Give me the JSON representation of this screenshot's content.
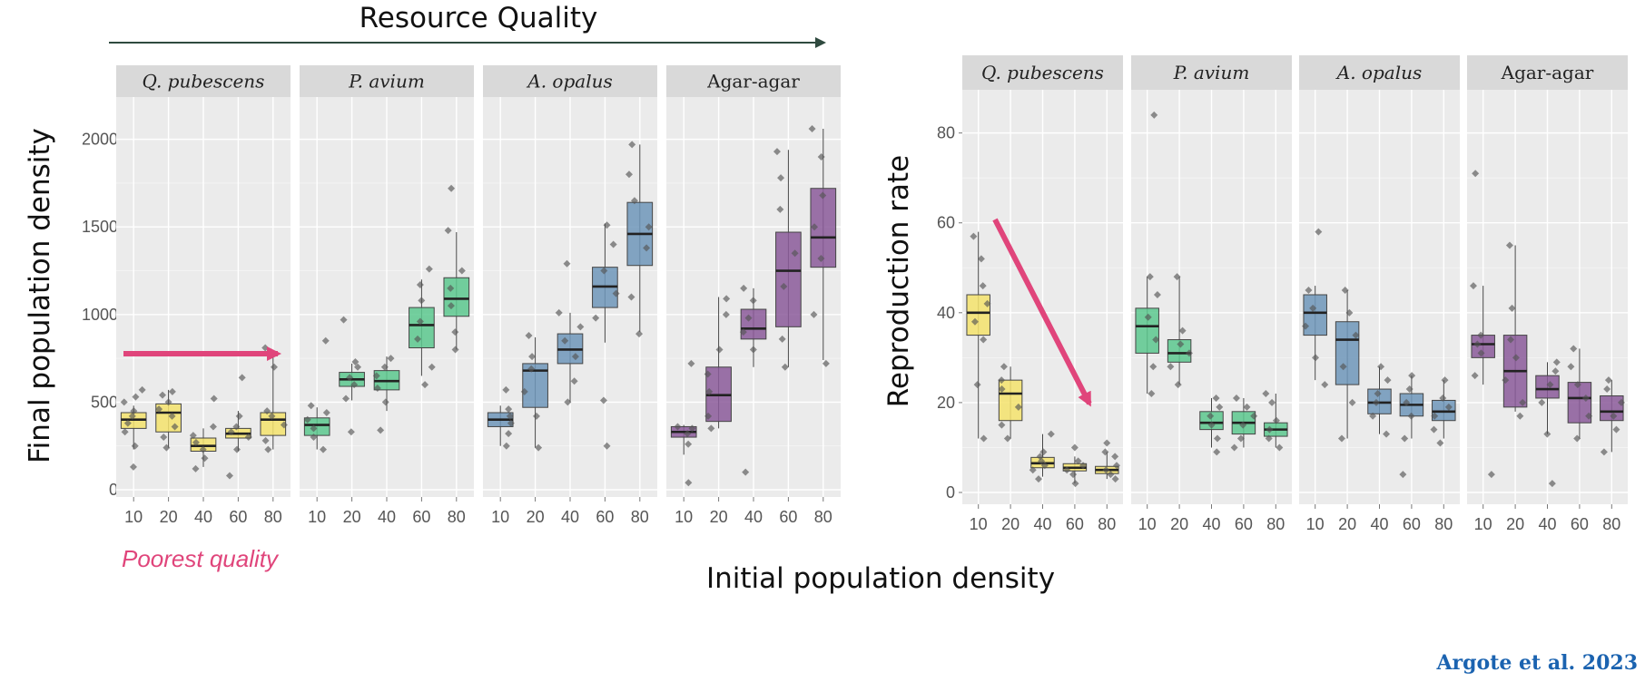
{
  "header": {
    "title": "Resource Quality"
  },
  "shared_xlabel": "Initial population density",
  "annotation": {
    "poorest": "Poorest quality"
  },
  "citation": "Argote et al. 2023",
  "colors": {
    "yellow": "#f4e36c",
    "green": "#5cc88e",
    "blue": "#6f96ba",
    "purple": "#8b5a9a",
    "pink": "#e0457b",
    "arrow_dark": "#2f4a3f"
  },
  "chart_data": [
    {
      "type": "box",
      "ylabel": "Final population density",
      "ylim": [
        0,
        2200
      ],
      "yticks": [
        0,
        500,
        1000,
        1500,
        2000
      ],
      "categories": [
        "10",
        "20",
        "40",
        "60",
        "80"
      ],
      "grid": true,
      "panels": [
        {
          "name": "Q. pubescens",
          "italic": true,
          "color": "yellow",
          "boxes": [
            {
              "q1": 350,
              "med": 400,
              "q3": 440,
              "lo": 230,
              "hi": 480,
              "pts": [
                130,
                250,
                330,
                380,
                420,
                450,
                500,
                570,
                530
              ]
            },
            {
              "q1": 330,
              "med": 440,
              "q3": 490,
              "lo": 240,
              "hi": 570,
              "pts": [
                240,
                300,
                360,
                420,
                460,
                500,
                540,
                560
              ]
            },
            {
              "q1": 220,
              "med": 250,
              "q3": 295,
              "lo": 130,
              "hi": 350,
              "pts": [
                120,
                180,
                230,
                270,
                310,
                360,
                520
              ]
            },
            {
              "q1": 295,
              "med": 320,
              "q3": 350,
              "lo": 220,
              "hi": 450,
              "pts": [
                80,
                230,
                300,
                330,
                360,
                420,
                640
              ]
            },
            {
              "q1": 310,
              "med": 400,
              "q3": 440,
              "lo": 230,
              "hi": 760,
              "pts": [
                230,
                280,
                370,
                420,
                450,
                700,
                770,
                810
              ]
            }
          ]
        },
        {
          "name": "P. avium",
          "italic": true,
          "color": "green",
          "boxes": [
            {
              "q1": 310,
              "med": 370,
              "q3": 410,
              "lo": 230,
              "hi": 470,
              "pts": [
                230,
                300,
                350,
                400,
                440,
                480,
                850
              ]
            },
            {
              "q1": 590,
              "med": 630,
              "q3": 670,
              "lo": 510,
              "hi": 720,
              "pts": [
                330,
                520,
                600,
                640,
                700,
                730,
                970
              ]
            },
            {
              "q1": 570,
              "med": 620,
              "q3": 680,
              "lo": 450,
              "hi": 760,
              "pts": [
                340,
                500,
                580,
                650,
                700,
                750
              ]
            },
            {
              "q1": 810,
              "med": 940,
              "q3": 1040,
              "lo": 650,
              "hi": 1200,
              "pts": [
                600,
                700,
                860,
                960,
                1080,
                1170,
                1260
              ]
            },
            {
              "q1": 990,
              "med": 1090,
              "q3": 1210,
              "lo": 800,
              "hi": 1470,
              "pts": [
                800,
                900,
                1050,
                1150,
                1250,
                1480,
                1720
              ]
            }
          ]
        },
        {
          "name": "A. opalus",
          "italic": true,
          "color": "blue",
          "boxes": [
            {
              "q1": 360,
              "med": 400,
              "q3": 440,
              "lo": 250,
              "hi": 480,
              "pts": [
                250,
                320,
                380,
                420,
                460,
                570
              ]
            },
            {
              "q1": 470,
              "med": 680,
              "q3": 720,
              "lo": 240,
              "hi": 870,
              "pts": [
                240,
                420,
                560,
                690,
                760,
                880
              ]
            },
            {
              "q1": 720,
              "med": 800,
              "q3": 890,
              "lo": 500,
              "hi": 1010,
              "pts": [
                500,
                620,
                760,
                850,
                930,
                1010,
                1290
              ]
            },
            {
              "q1": 1040,
              "med": 1160,
              "q3": 1270,
              "lo": 840,
              "hi": 1520,
              "pts": [
                250,
                510,
                980,
                1120,
                1250,
                1400,
                1510
              ]
            },
            {
              "q1": 1280,
              "med": 1460,
              "q3": 1640,
              "lo": 900,
              "hi": 1970,
              "pts": [
                890,
                1100,
                1380,
                1500,
                1650,
                1800,
                1970
              ]
            }
          ]
        },
        {
          "name": "Agar-agar",
          "italic": false,
          "color": "purple",
          "boxes": [
            {
              "q1": 300,
              "med": 330,
              "q3": 360,
              "lo": 200,
              "hi": 370,
              "pts": [
                40,
                260,
                320,
                350,
                360,
                720
              ]
            },
            {
              "q1": 390,
              "med": 540,
              "q3": 700,
              "lo": 350,
              "hi": 1100,
              "pts": [
                350,
                420,
                560,
                660,
                800,
                1000,
                1090
              ]
            },
            {
              "q1": 860,
              "med": 920,
              "q3": 1030,
              "lo": 700,
              "hi": 1150,
              "pts": [
                100,
                800,
                900,
                980,
                1080,
                1150
              ]
            },
            {
              "q1": 930,
              "med": 1250,
              "q3": 1470,
              "lo": 700,
              "hi": 1940,
              "pts": [
                700,
                860,
                1160,
                1350,
                1600,
                1780,
                1930
              ]
            },
            {
              "q1": 1270,
              "med": 1440,
              "q3": 1720,
              "lo": 740,
              "hi": 2060,
              "pts": [
                720,
                1000,
                1320,
                1500,
                1680,
                1900,
                2060
              ]
            }
          ]
        }
      ]
    },
    {
      "type": "box",
      "ylabel": "Reproduction rate",
      "ylim": [
        0,
        88
      ],
      "yticks": [
        0,
        20,
        40,
        60,
        80
      ],
      "categories": [
        "10",
        "20",
        "40",
        "60",
        "80"
      ],
      "grid": true,
      "panels": [
        {
          "name": "Q. pubescens",
          "italic": true,
          "color": "yellow",
          "boxes": [
            {
              "q1": 35,
              "med": 40,
              "q3": 44,
              "lo": 12,
              "hi": 58,
              "pts": [
                12,
                24,
                34,
                38,
                42,
                46,
                52,
                57
              ]
            },
            {
              "q1": 16,
              "med": 22,
              "q3": 25,
              "lo": 12,
              "hi": 28,
              "pts": [
                12,
                15,
                19,
                23,
                25,
                28
              ]
            },
            {
              "q1": 5.5,
              "med": 6.5,
              "q3": 7.8,
              "lo": 3.5,
              "hi": 13,
              "pts": [
                3,
                5,
                6,
                7,
                8,
                9,
                13
              ]
            },
            {
              "q1": 4.8,
              "med": 5.5,
              "q3": 6.4,
              "lo": 2,
              "hi": 8,
              "pts": [
                2,
                4,
                5,
                6,
                7,
                10
              ]
            },
            {
              "q1": 4.2,
              "med": 5,
              "q3": 5.8,
              "lo": 3,
              "hi": 9,
              "pts": [
                3,
                4,
                5,
                6,
                8,
                9,
                11
              ]
            }
          ]
        },
        {
          "name": "P. avium",
          "italic": true,
          "color": "green",
          "boxes": [
            {
              "q1": 31,
              "med": 37,
              "q3": 41,
              "lo": 22,
              "hi": 48,
              "pts": [
                22,
                28,
                34,
                39,
                44,
                48,
                84
              ]
            },
            {
              "q1": 29,
              "med": 31,
              "q3": 34,
              "lo": 24,
              "hi": 48,
              "pts": [
                24,
                28,
                31,
                33,
                36,
                48
              ]
            },
            {
              "q1": 14,
              "med": 15.5,
              "q3": 18,
              "lo": 10,
              "hi": 21,
              "pts": [
                9,
                12,
                15,
                17,
                19,
                21
              ]
            },
            {
              "q1": 13,
              "med": 15.5,
              "q3": 18,
              "lo": 10,
              "hi": 21,
              "pts": [
                10,
                12,
                15,
                17,
                19,
                21
              ]
            },
            {
              "q1": 12.5,
              "med": 14,
              "q3": 15.5,
              "lo": 10,
              "hi": 22,
              "pts": [
                10,
                12,
                14,
                16,
                20,
                22
              ]
            }
          ]
        },
        {
          "name": "A. opalus",
          "italic": true,
          "color": "blue",
          "boxes": [
            {
              "q1": 35,
              "med": 40,
              "q3": 44,
              "lo": 25,
              "hi": 46,
              "pts": [
                24,
                30,
                37,
                41,
                45,
                58
              ]
            },
            {
              "q1": 24,
              "med": 34,
              "q3": 38,
              "lo": 12,
              "hi": 45,
              "pts": [
                12,
                20,
                28,
                35,
                40,
                45
              ]
            },
            {
              "q1": 17.5,
              "med": 20,
              "q3": 23,
              "lo": 13,
              "hi": 28,
              "pts": [
                13,
                17,
                20,
                22,
                25,
                28
              ]
            },
            {
              "q1": 17,
              "med": 19.5,
              "q3": 22,
              "lo": 12,
              "hi": 26,
              "pts": [
                4,
                12,
                17,
                20,
                23,
                26
              ]
            },
            {
              "q1": 16,
              "med": 18,
              "q3": 20.5,
              "lo": 12,
              "hi": 25,
              "pts": [
                11,
                14,
                17,
                19,
                21,
                25
              ]
            }
          ]
        },
        {
          "name": "Agar-agar",
          "italic": false,
          "color": "purple",
          "boxes": [
            {
              "q1": 30,
              "med": 33,
              "q3": 35,
              "lo": 24,
              "hi": 46,
              "pts": [
                4,
                26,
                31,
                33,
                35,
                46,
                71
              ]
            },
            {
              "q1": 19,
              "med": 27,
              "q3": 35,
              "lo": 18,
              "hi": 55,
              "pts": [
                17,
                20,
                25,
                30,
                34,
                41,
                55
              ]
            },
            {
              "q1": 21,
              "med": 23,
              "q3": 26,
              "lo": 13,
              "hi": 29,
              "pts": [
                2,
                13,
                20,
                24,
                27,
                29
              ]
            },
            {
              "q1": 15.5,
              "med": 21,
              "q3": 24.5,
              "lo": 12,
              "hi": 32,
              "pts": [
                12,
                17,
                21,
                24,
                28,
                32
              ]
            },
            {
              "q1": 16,
              "med": 18,
              "q3": 21.5,
              "lo": 9,
              "hi": 25,
              "pts": [
                9,
                14,
                17,
                20,
                23,
                25
              ]
            }
          ]
        }
      ]
    }
  ]
}
